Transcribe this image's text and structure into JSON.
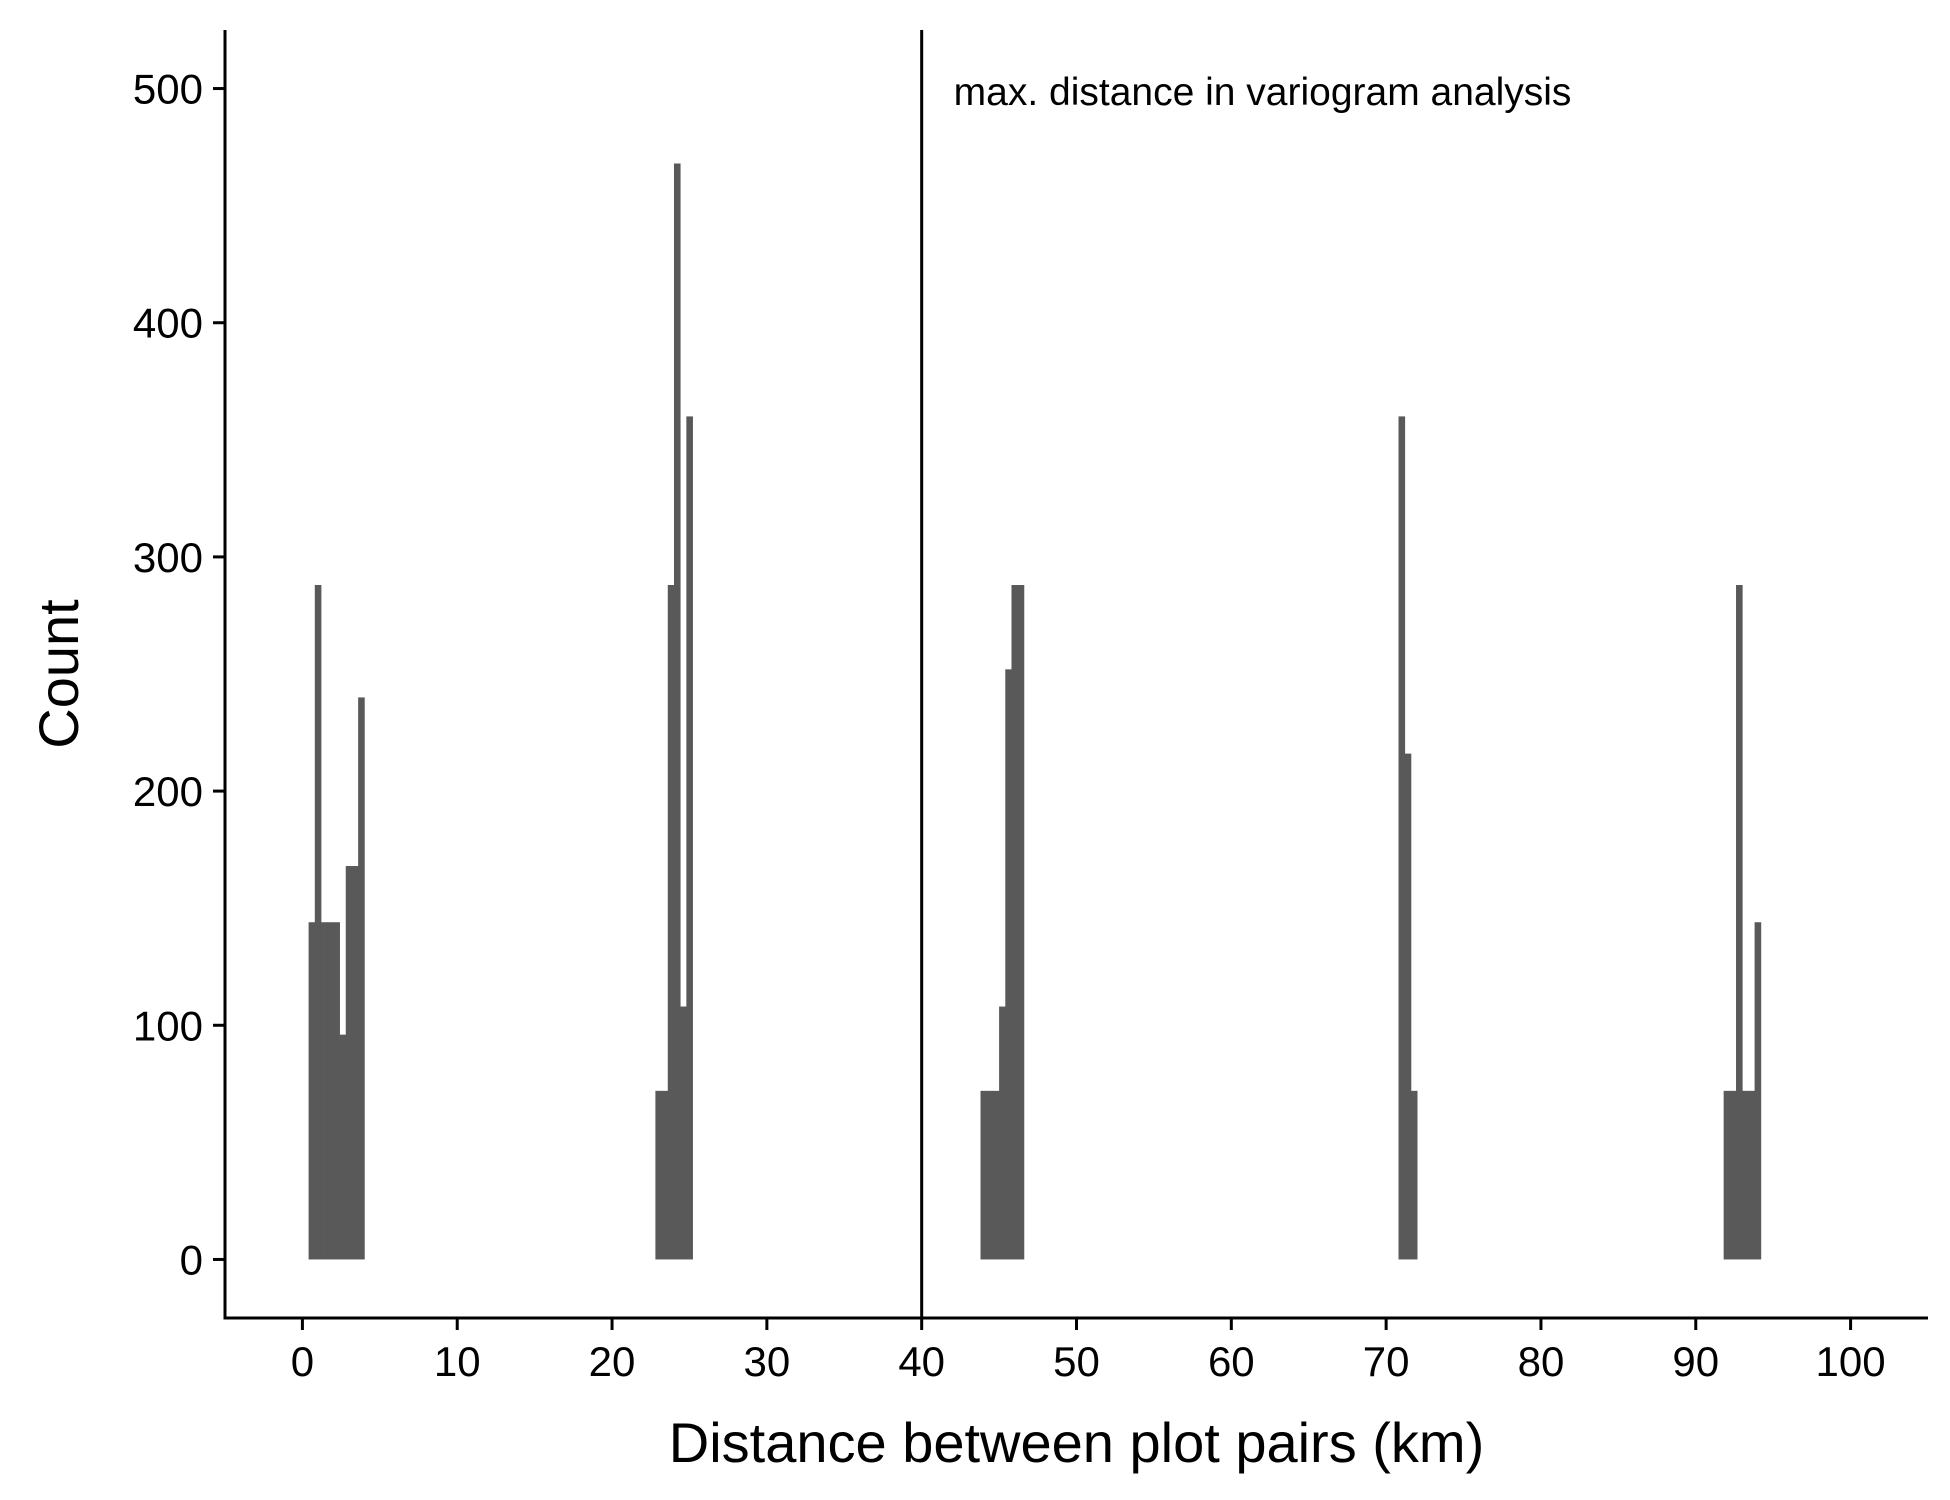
{
  "chart_data": {
    "type": "histogram",
    "title": "",
    "xlabel": "Distance between plot pairs (km)",
    "ylabel": "Count",
    "xlim": [
      -5,
      105
    ],
    "ylim": [
      -25,
      525
    ],
    "x_ticks": [
      0,
      10,
      20,
      30,
      40,
      50,
      60,
      70,
      80,
      90,
      100
    ],
    "y_ticks": [
      0,
      100,
      200,
      300,
      400,
      500
    ],
    "bin_width": 0.4,
    "bins": [
      {
        "x0": 0.4,
        "x1": 0.8,
        "count": 144
      },
      {
        "x0": 0.8,
        "x1": 1.2,
        "count": 288
      },
      {
        "x0": 1.2,
        "x1": 1.6,
        "count": 144
      },
      {
        "x0": 1.6,
        "x1": 2.0,
        "count": 144
      },
      {
        "x0": 2.0,
        "x1": 2.4,
        "count": 144
      },
      {
        "x0": 2.4,
        "x1": 2.8,
        "count": 96
      },
      {
        "x0": 2.8,
        "x1": 3.2,
        "count": 168
      },
      {
        "x0": 3.2,
        "x1": 3.6,
        "count": 168
      },
      {
        "x0": 3.6,
        "x1": 4.0,
        "count": 240
      },
      {
        "x0": 22.8,
        "x1": 23.2,
        "count": 72
      },
      {
        "x0": 23.2,
        "x1": 23.6,
        "count": 72
      },
      {
        "x0": 23.6,
        "x1": 24.0,
        "count": 288
      },
      {
        "x0": 24.0,
        "x1": 24.4,
        "count": 468
      },
      {
        "x0": 24.4,
        "x1": 24.8,
        "count": 108
      },
      {
        "x0": 24.8,
        "x1": 25.2,
        "count": 360
      },
      {
        "x0": 43.8,
        "x1": 44.2,
        "count": 72
      },
      {
        "x0": 44.2,
        "x1": 44.6,
        "count": 72
      },
      {
        "x0": 44.6,
        "x1": 45.0,
        "count": 72
      },
      {
        "x0": 45.0,
        "x1": 45.4,
        "count": 108
      },
      {
        "x0": 45.4,
        "x1": 45.8,
        "count": 252
      },
      {
        "x0": 45.8,
        "x1": 46.2,
        "count": 288
      },
      {
        "x0": 46.2,
        "x1": 46.6,
        "count": 288
      },
      {
        "x0": 70.8,
        "x1": 71.2,
        "count": 360
      },
      {
        "x0": 71.2,
        "x1": 71.6,
        "count": 216
      },
      {
        "x0": 71.6,
        "x1": 72.0,
        "count": 72
      },
      {
        "x0": 91.8,
        "x1": 92.2,
        "count": 72
      },
      {
        "x0": 92.2,
        "x1": 92.6,
        "count": 72
      },
      {
        "x0": 92.6,
        "x1": 93.0,
        "count": 288
      },
      {
        "x0": 93.0,
        "x1": 93.4,
        "count": 72
      },
      {
        "x0": 93.4,
        "x1": 93.8,
        "count": 72
      },
      {
        "x0": 93.8,
        "x1": 94.2,
        "count": 144
      }
    ],
    "bar_color": "#595959",
    "reference_line": {
      "x": 40,
      "label": "max. distance in variogram analysis",
      "color": "#000000"
    },
    "grid": false,
    "legend": "none"
  }
}
